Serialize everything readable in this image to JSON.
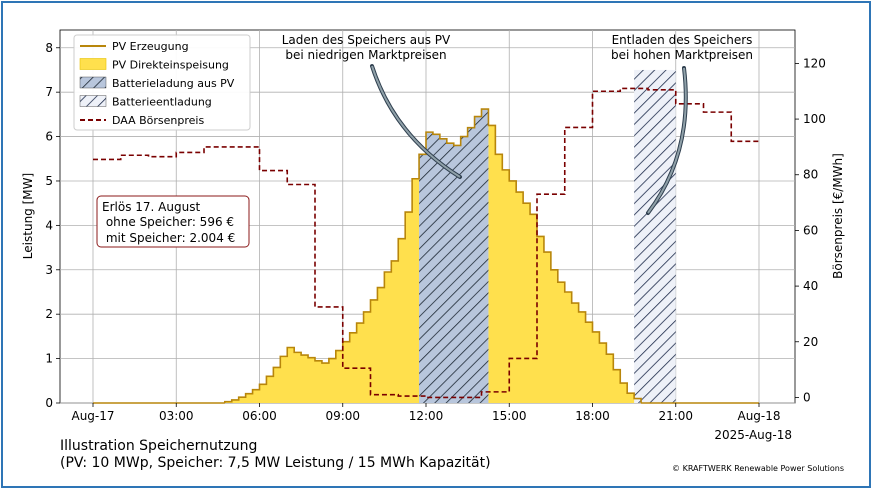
{
  "chart_data": {
    "type": "area",
    "title": "",
    "x_ticks": [
      "Aug-17",
      "03:00",
      "06:00",
      "09:00",
      "12:00",
      "15:00",
      "18:00",
      "21:00",
      "Aug-18"
    ],
    "x_offset_label": "2025-Aug-18",
    "ylabel_left": "Leistung [MW]",
    "ylabel_right": "Börsenpreis [€/MWh]",
    "ylim_left": [
      0,
      8.4
    ],
    "ylim_right": [
      -2,
      132
    ],
    "yticks_left": [
      "0",
      "1",
      "2",
      "3",
      "4",
      "5",
      "6",
      "7",
      "8"
    ],
    "yticks_right": [
      "0",
      "20",
      "40",
      "60",
      "80",
      "100",
      "120"
    ],
    "grid": true,
    "legend_position": "top-left",
    "legend": [
      {
        "label": "PV Erzeugung",
        "style": "line",
        "color": "#b8860b"
      },
      {
        "label": "PV Direkteinspeisung",
        "style": "fill",
        "color": "#ffe04d"
      },
      {
        "label": "Batterieladung aus PV",
        "style": "hatch",
        "color": "#b8c6dc"
      },
      {
        "label": "Batterieentladung",
        "style": "hatch",
        "color": "#e8ecf4"
      },
      {
        "label": "DAA Börsenpreis",
        "style": "dashed",
        "color": "#7a0000"
      }
    ],
    "pv_generation": {
      "x_hours": [
        4.75,
        5.0,
        5.25,
        5.5,
        5.75,
        6.0,
        6.25,
        6.5,
        6.75,
        7.0,
        7.25,
        7.5,
        7.75,
        8.0,
        8.25,
        8.5,
        8.75,
        9.0,
        9.25,
        9.5,
        9.75,
        10.0,
        10.25,
        10.5,
        10.75,
        11.0,
        11.25,
        11.5,
        11.75,
        12.0,
        12.25,
        12.5,
        12.75,
        13.0,
        13.25,
        13.5,
        13.75,
        14.0,
        14.25,
        14.5,
        14.75,
        15.0,
        15.25,
        15.5,
        15.75,
        16.0,
        16.25,
        16.5,
        16.75,
        17.0,
        17.25,
        17.5,
        17.75,
        18.0,
        18.25,
        18.5,
        18.75,
        19.0,
        19.25,
        19.5
      ],
      "values_mw": [
        0.03,
        0.07,
        0.13,
        0.21,
        0.3,
        0.42,
        0.6,
        0.8,
        1.05,
        1.25,
        1.14,
        1.08,
        1.02,
        0.95,
        0.9,
        1.0,
        1.18,
        1.38,
        1.58,
        1.8,
        2.05,
        2.32,
        2.6,
        2.95,
        3.2,
        3.7,
        4.3,
        5.05,
        5.6,
        6.1,
        6.05,
        5.95,
        5.85,
        5.8,
        6.0,
        6.2,
        6.45,
        6.62,
        6.25,
        5.6,
        5.25,
        5.0,
        4.75,
        4.5,
        4.25,
        3.75,
        3.4,
        3.0,
        2.72,
        2.5,
        2.25,
        2.05,
        1.82,
        1.6,
        1.35,
        1.1,
        0.75,
        0.45,
        0.22,
        0.1
      ]
    },
    "battery_charge_window_hours": [
      11.75,
      14.25
    ],
    "battery_discharge_window_hours": [
      19.5,
      21.0
    ],
    "battery_discharge_mw": 7.5,
    "price": {
      "x_hours": [
        0,
        1,
        2,
        3,
        4,
        5,
        6,
        7,
        8,
        9,
        10,
        11,
        12,
        13,
        14,
        15,
        16,
        17,
        18,
        19,
        20,
        21,
        22,
        23
      ],
      "values_eur_mwh": [
        85.5,
        87,
        86.5,
        88,
        90,
        90,
        81.5,
        76.5,
        32.5,
        10.5,
        1,
        0.5,
        0,
        0,
        2,
        14,
        73,
        97,
        110,
        111,
        110.5,
        105.5,
        102.5,
        92
      ]
    },
    "annotations": [
      {
        "text": "Laden des Speichers aus PV\nbei niedrigen Marktpreisen"
      },
      {
        "text": "Entladen des Speichers\nbei hohen Marktpreisen"
      }
    ],
    "info_box": {
      "line1": "Erlös 17. August",
      "line2": " ohne Speicher: 596 €",
      "line3": " mit Speicher: 2.004 €"
    }
  },
  "footer": {
    "title_line1": "Illustration Speichernutzung",
    "title_line2": "(PV: 10 MWp, Speicher: 7,5 MW Leistung / 15 MWh Kapazität)",
    "copyright": "© KRAFTWERK Renewable Power Solutions"
  }
}
